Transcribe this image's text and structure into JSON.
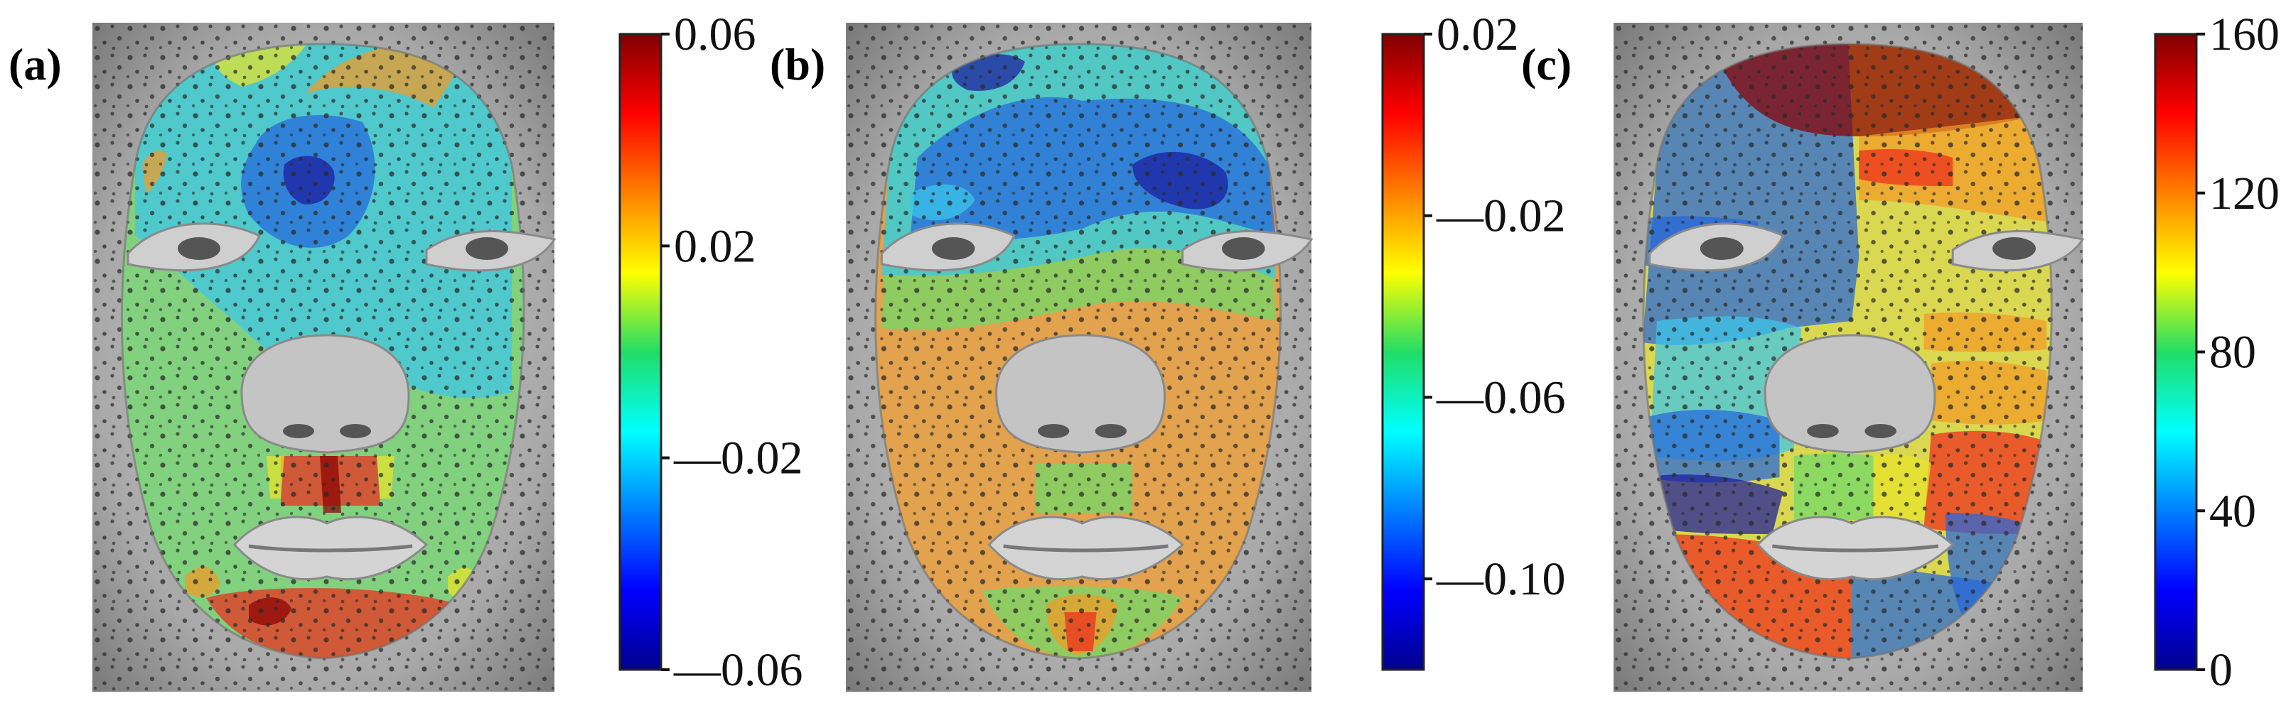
{
  "chart_data": [
    {
      "type": "heatmap",
      "panel_label": "(a)",
      "colorbar": {
        "colormap": "jet",
        "range": [
          -0.06,
          0.06
        ],
        "tick_values": [
          0.06,
          0.02,
          -0.02,
          -0.06
        ],
        "tick_labels": [
          "0.06",
          "0.02",
          "—0.02",
          "—0.06"
        ]
      }
    },
    {
      "type": "heatmap",
      "panel_label": "(b)",
      "colorbar": {
        "colormap": "jet",
        "range": [
          -0.12,
          0.02
        ],
        "tick_values": [
          0.02,
          -0.02,
          -0.06,
          -0.1
        ],
        "tick_labels": [
          "0.02",
          "—0.02",
          "—0.06",
          "—0.10"
        ]
      }
    },
    {
      "type": "heatmap",
      "panel_label": "(c)",
      "colorbar": {
        "colormap": "jet",
        "range": [
          0,
          160
        ],
        "tick_values": [
          160,
          120,
          80,
          40,
          0
        ],
        "tick_labels": [
          "160",
          "120",
          "80",
          "40",
          "0"
        ]
      }
    }
  ],
  "colors": {
    "dark_red": "#8b0000",
    "red": "#ef2b1c",
    "orange": "#f39a26",
    "yellow": "#e8e42a",
    "green": "#6edb6a",
    "cyan": "#3bc6ea",
    "blue": "#2466dd",
    "dark_blue": "#1c1a9e"
  }
}
